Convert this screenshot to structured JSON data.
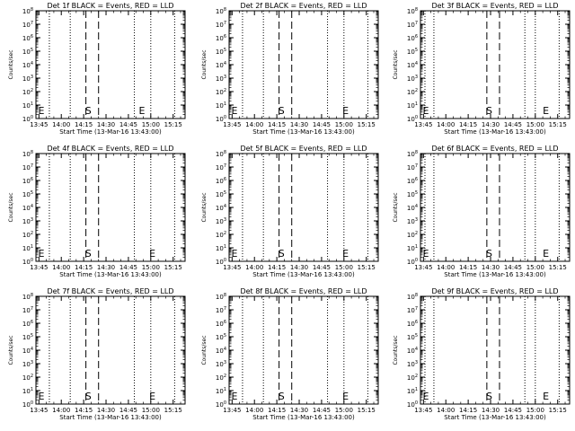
{
  "chart_data": {
    "type": "line",
    "layout": "3x3 grid",
    "ylabel": "Counts/sec",
    "xlabel": "Start Time (13-Mar-16 13:43:00)",
    "x_tick_labels": [
      "13:45",
      "14:00",
      "14:15",
      "14:30",
      "14:45",
      "15:00",
      "15:15"
    ],
    "x_tick_times_min": [
      2,
      17,
      32,
      47,
      62,
      77,
      92
    ],
    "x_range_min": [
      0,
      100
    ],
    "y_scale": "log",
    "y_range": [
      1,
      100000000
    ],
    "y_tick_base": "10",
    "y_tick_exponents": [
      "0",
      "1",
      "2",
      "3",
      "4",
      "5",
      "6",
      "7",
      "8"
    ],
    "dotted_line_times_min": [
      9,
      23,
      66,
      77,
      93
    ],
    "dotted_line_times_min_right_column": [
      3,
      9,
      70,
      77,
      93
    ],
    "dashed_line_times_min": [
      33.5,
      42
    ],
    "marker_labels": [
      "E",
      "S",
      "E"
    ],
    "panels": [
      {
        "title": "Det 1f BLACK = Events, RED = LLD",
        "markers": [
          {
            "label": "E",
            "x": 1.5
          },
          {
            "label": "S",
            "x": 33
          },
          {
            "label": "E",
            "x": 69
          }
        ]
      },
      {
        "title": "Det 2f BLACK = Events, RED = LLD",
        "markers": [
          {
            "label": "E",
            "x": 1.5
          },
          {
            "label": "S",
            "x": 33
          },
          {
            "label": "E",
            "x": 76
          }
        ]
      },
      {
        "title": "Det 3f BLACK = Events, RED = LLD",
        "markers": [
          {
            "label": "E",
            "x": 1.5
          },
          {
            "label": "S",
            "x": 44
          },
          {
            "label": "E",
            "x": 82
          }
        ]
      },
      {
        "title": "Det 4f BLACK = Events, RED = LLD",
        "markers": [
          {
            "label": "E",
            "x": 1.5
          },
          {
            "label": "S",
            "x": 33
          },
          {
            "label": "E",
            "x": 76
          }
        ]
      },
      {
        "title": "Det 5f BLACK = Events, RED = LLD",
        "markers": [
          {
            "label": "E",
            "x": 1.5
          },
          {
            "label": "S",
            "x": 33
          },
          {
            "label": "E",
            "x": 76
          }
        ]
      },
      {
        "title": "Det 6f BLACK = Events, RED = LLD",
        "markers": [
          {
            "label": "E",
            "x": 1.5
          },
          {
            "label": "S",
            "x": 44
          },
          {
            "label": "E",
            "x": 82
          }
        ]
      },
      {
        "title": "Det 7f BLACK = Events, RED = LLD",
        "markers": [
          {
            "label": "E",
            "x": 1.5
          },
          {
            "label": "S",
            "x": 33
          },
          {
            "label": "E",
            "x": 76
          }
        ]
      },
      {
        "title": "Det 8f BLACK = Events, RED = LLD",
        "markers": [
          {
            "label": "E",
            "x": 1.5
          },
          {
            "label": "S",
            "x": 33
          },
          {
            "label": "E",
            "x": 76
          }
        ]
      },
      {
        "title": "Det 9f BLACK = Events, RED = LLD",
        "markers": [
          {
            "label": "E",
            "x": 1.5
          },
          {
            "label": "S",
            "x": 44
          },
          {
            "label": "E",
            "x": 82
          }
        ]
      }
    ],
    "grid": false,
    "colors": {
      "background": "#ffffff",
      "axes": "#000000",
      "events": "#000000",
      "lld": "#ff0000"
    }
  }
}
